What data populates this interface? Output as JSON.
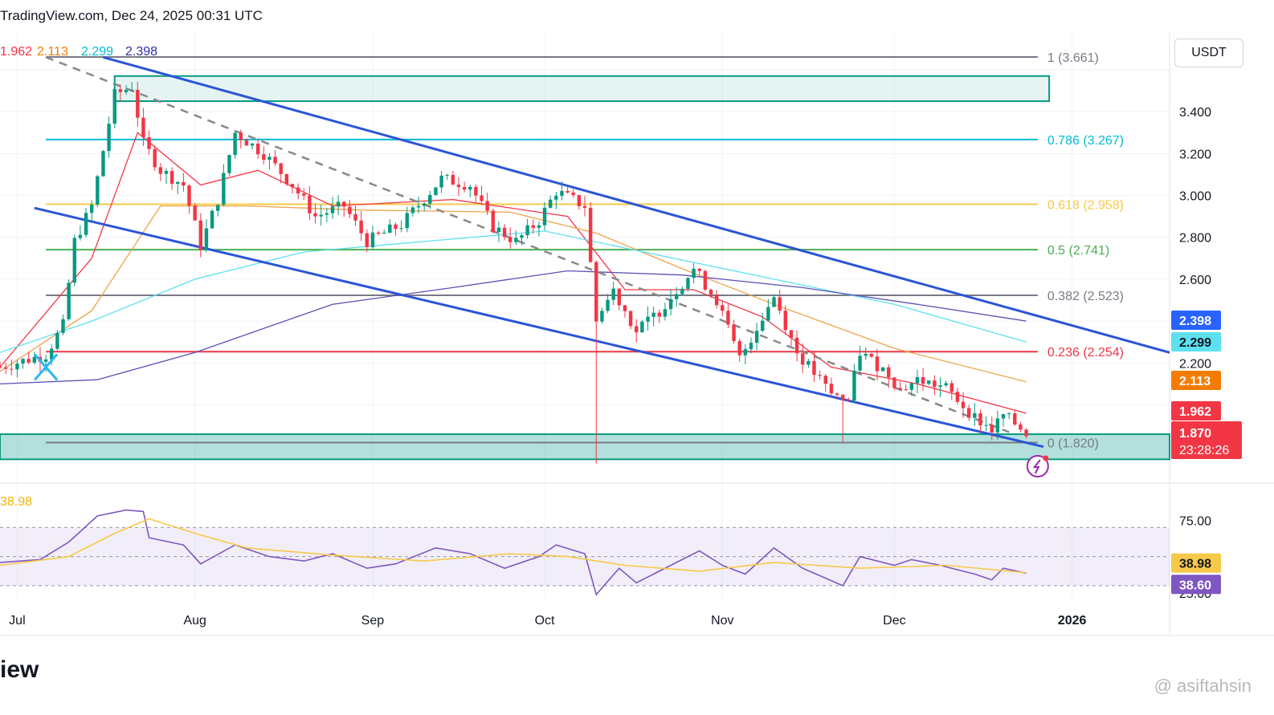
{
  "header": {
    "text": "TradingView.com, Dec 24, 2025 00:31 UTC"
  },
  "currency_button": "USDT",
  "footer": {
    "logo_text": "iew",
    "watermark": "@ asiftahsin"
  },
  "colors": {
    "up": "#089981",
    "down": "#f23645",
    "channel": "#2b55d6",
    "midline": "#888888",
    "ma_red": "#f23645",
    "ma_orange": "#f0a24a",
    "ma_cyan": "#5ee0f0",
    "ma_purple": "#5b4fb5",
    "rsi": "#7e57c2",
    "rsi_ma": "#f7c948",
    "zone": "#26a69a"
  },
  "chart_data": {
    "type": "candlestick",
    "pair_currency": "USDT",
    "x_tick_labels": [
      {
        "label": "Jul",
        "date": "2025-07-01"
      },
      {
        "label": "Aug",
        "date": "2025-08-01"
      },
      {
        "label": "Sep",
        "date": "2025-09-01"
      },
      {
        "label": "Oct",
        "date": "2025-10-01"
      },
      {
        "label": "Nov",
        "date": "2025-11-01"
      },
      {
        "label": "Dec",
        "date": "2025-12-01"
      },
      {
        "label": "2026",
        "date": "2026-01-01"
      }
    ],
    "x_range": [
      "2025-06-28",
      "2026-01-18"
    ],
    "y_range": [
      1.72,
      3.66
    ],
    "y_tick_labels": [
      "3.400",
      "3.200",
      "3.000",
      "2.800",
      "2.600",
      "2.200"
    ],
    "ma_legend": [
      "1.962",
      "2.113",
      "2.299",
      "2.398"
    ],
    "candles_anchors": [
      {
        "date": "2025-06-28",
        "close": 2.18
      },
      {
        "date": "2025-07-06",
        "close": 2.24
      },
      {
        "date": "2025-07-09",
        "close": 2.38
      },
      {
        "date": "2025-07-11",
        "close": 2.78
      },
      {
        "date": "2025-07-14",
        "close": 2.95
      },
      {
        "date": "2025-07-18",
        "close": 3.48
      },
      {
        "date": "2025-07-21",
        "close": 3.52
      },
      {
        "date": "2025-07-23",
        "close": 3.25
      },
      {
        "date": "2025-07-26",
        "close": 3.12
      },
      {
        "date": "2025-07-30",
        "close": 3.05
      },
      {
        "date": "2025-08-02",
        "close": 2.76
      },
      {
        "date": "2025-08-05",
        "close": 2.98
      },
      {
        "date": "2025-08-08",
        "close": 3.3
      },
      {
        "date": "2025-08-13",
        "close": 3.2
      },
      {
        "date": "2025-08-18",
        "close": 3.05
      },
      {
        "date": "2025-08-22",
        "close": 2.9
      },
      {
        "date": "2025-08-27",
        "close": 2.95
      },
      {
        "date": "2025-08-31",
        "close": 2.78
      },
      {
        "date": "2025-09-06",
        "close": 2.86
      },
      {
        "date": "2025-09-13",
        "close": 3.08
      },
      {
        "date": "2025-09-18",
        "close": 3.05
      },
      {
        "date": "2025-09-22",
        "close": 2.85
      },
      {
        "date": "2025-09-26",
        "close": 2.78
      },
      {
        "date": "2025-09-30",
        "close": 2.88
      },
      {
        "date": "2025-10-03",
        "close": 3.02
      },
      {
        "date": "2025-10-08",
        "close": 2.95
      },
      {
        "date": "2025-10-10",
        "close": 2.4
      },
      {
        "date": "2025-10-13",
        "close": 2.55
      },
      {
        "date": "2025-10-17",
        "close": 2.35
      },
      {
        "date": "2025-10-21",
        "close": 2.45
      },
      {
        "date": "2025-10-27",
        "close": 2.65
      },
      {
        "date": "2025-10-31",
        "close": 2.5
      },
      {
        "date": "2025-11-04",
        "close": 2.22
      },
      {
        "date": "2025-11-10",
        "close": 2.52
      },
      {
        "date": "2025-11-14",
        "close": 2.25
      },
      {
        "date": "2025-11-20",
        "close": 2.05
      },
      {
        "date": "2025-11-23",
        "close": 2.02
      },
      {
        "date": "2025-11-25",
        "close": 2.25
      },
      {
        "date": "2025-11-30",
        "close": 2.15
      },
      {
        "date": "2025-12-02",
        "close": 2.07
      },
      {
        "date": "2025-12-05",
        "close": 2.12
      },
      {
        "date": "2025-12-10",
        "close": 2.08
      },
      {
        "date": "2025-12-15",
        "close": 1.94
      },
      {
        "date": "2025-12-18",
        "close": 1.88
      },
      {
        "date": "2025-12-20",
        "close": 1.95
      },
      {
        "date": "2025-12-24",
        "close": 1.87
      }
    ],
    "notable_wicks": [
      {
        "date": "2025-10-10",
        "low": 1.72
      },
      {
        "date": "2025-11-22",
        "low": 1.82
      }
    ],
    "moving_averages": [
      {
        "value_label": "1.962",
        "color": "#f23645",
        "points": [
          [
            "2025-06-28",
            2.18
          ],
          [
            "2025-07-14",
            2.7
          ],
          [
            "2025-07-22",
            3.3
          ],
          [
            "2025-08-02",
            3.05
          ],
          [
            "2025-08-12",
            3.12
          ],
          [
            "2025-08-25",
            2.95
          ],
          [
            "2025-09-15",
            2.98
          ],
          [
            "2025-10-05",
            2.9
          ],
          [
            "2025-10-15",
            2.55
          ],
          [
            "2025-10-27",
            2.55
          ],
          [
            "2025-11-08",
            2.42
          ],
          [
            "2025-11-20",
            2.18
          ],
          [
            "2025-12-05",
            2.1
          ],
          [
            "2025-12-24",
            1.96
          ]
        ]
      },
      {
        "value_label": "2.113",
        "color": "#f0a24a",
        "points": [
          [
            "2025-06-28",
            2.16
          ],
          [
            "2025-07-14",
            2.45
          ],
          [
            "2025-07-26",
            2.95
          ],
          [
            "2025-08-10",
            2.95
          ],
          [
            "2025-08-30",
            2.93
          ],
          [
            "2025-09-25",
            2.92
          ],
          [
            "2025-10-10",
            2.82
          ],
          [
            "2025-10-25",
            2.65
          ],
          [
            "2025-11-10",
            2.48
          ],
          [
            "2025-12-01",
            2.27
          ],
          [
            "2025-12-24",
            2.11
          ]
        ]
      },
      {
        "value_label": "2.299",
        "color": "#5ee0f0",
        "points": [
          [
            "2025-06-28",
            2.25
          ],
          [
            "2025-07-14",
            2.4
          ],
          [
            "2025-08-01",
            2.6
          ],
          [
            "2025-08-20",
            2.73
          ],
          [
            "2025-09-10",
            2.78
          ],
          [
            "2025-10-01",
            2.83
          ],
          [
            "2025-10-20",
            2.72
          ],
          [
            "2025-11-10",
            2.6
          ],
          [
            "2025-12-01",
            2.48
          ],
          [
            "2025-12-24",
            2.3
          ]
        ]
      },
      {
        "value_label": "2.398",
        "color": "#5b4fb5",
        "points": [
          [
            "2025-06-28",
            2.1
          ],
          [
            "2025-07-15",
            2.12
          ],
          [
            "2025-08-01",
            2.25
          ],
          [
            "2025-08-25",
            2.48
          ],
          [
            "2025-09-15",
            2.56
          ],
          [
            "2025-10-05",
            2.64
          ],
          [
            "2025-10-25",
            2.62
          ],
          [
            "2025-11-15",
            2.56
          ],
          [
            "2025-12-05",
            2.48
          ],
          [
            "2025-12-24",
            2.4
          ]
        ]
      }
    ],
    "fibonacci_levels": [
      {
        "label": "1 (3.661)",
        "value": 3.661,
        "color": "#787b86"
      },
      {
        "label": "0.786 (3.267)",
        "value": 3.267,
        "color": "#00bcd4"
      },
      {
        "label": "0.618 (2.958)",
        "value": 2.958,
        "color": "#f7c948"
      },
      {
        "label": "0.5 (2.741)",
        "value": 2.741,
        "color": "#4caf50"
      },
      {
        "label": "0.382 (2.523)",
        "value": 2.523,
        "color": "#787b86"
      },
      {
        "label": "0.236 (2.254)",
        "value": 2.254,
        "color": "#f23645"
      },
      {
        "label": "0 (1.820)",
        "value": 1.82,
        "color": "#787b86"
      }
    ],
    "channel": {
      "upper": [
        [
          "2025-07-16",
          3.66
        ],
        [
          "2026-01-18",
          2.25
        ]
      ],
      "lower": [
        [
          "2025-07-04",
          2.94
        ],
        [
          "2025-12-27",
          1.8
        ]
      ],
      "mid": [
        [
          "2025-07-06",
          3.66
        ],
        [
          "2025-12-21",
          1.87
        ]
      ]
    },
    "zones": [
      {
        "name": "supply",
        "from": "2025-07-18",
        "to": "2025-12-28",
        "top": 3.57,
        "bottom": 3.45
      },
      {
        "name": "demand",
        "from": "2025-06-28",
        "to": "2026-01-18",
        "top": 1.86,
        "bottom": 1.74
      }
    ],
    "price_labels": [
      {
        "text": "2.398",
        "value": 2.398,
        "bg": "#2962ff",
        "fg": "#ffffff"
      },
      {
        "text": "2.299",
        "value": 2.299,
        "bg": "#5ee0f0",
        "fg": "#131722"
      },
      {
        "text": "2.113",
        "value": 2.113,
        "bg": "#f57c00",
        "fg": "#ffffff"
      },
      {
        "text": "1.962",
        "value": 1.962,
        "bg": "#f23645",
        "fg": "#ffffff"
      },
      {
        "text": "1.870",
        "countdown": "23:28:26",
        "value": 1.87,
        "bg": "#f23645",
        "fg": "#ffffff"
      }
    ],
    "rsi": {
      "y_range": [
        20,
        100
      ],
      "band": [
        30,
        70
      ],
      "y_tick_labels": [
        "75.00",
        "25.00"
      ],
      "legend_value": "38.98",
      "value_labels": [
        {
          "text": "38.98",
          "value": 38.98,
          "bg": "#f7c948",
          "fg": "#131722"
        },
        {
          "text": "38.60",
          "value": 38.6,
          "bg": "#7e57c2",
          "fg": "#ffffff"
        }
      ],
      "rsi_points": [
        [
          "2025-06-28",
          46
        ],
        [
          "2025-07-05",
          48
        ],
        [
          "2025-07-10",
          60
        ],
        [
          "2025-07-15",
          78
        ],
        [
          "2025-07-20",
          82
        ],
        [
          "2025-07-23",
          81
        ],
        [
          "2025-07-24",
          63
        ],
        [
          "2025-07-30",
          58
        ],
        [
          "2025-08-02",
          45
        ],
        [
          "2025-08-08",
          58
        ],
        [
          "2025-08-14",
          50
        ],
        [
          "2025-08-20",
          47
        ],
        [
          "2025-08-25",
          52
        ],
        [
          "2025-08-31",
          42
        ],
        [
          "2025-09-05",
          45
        ],
        [
          "2025-09-12",
          56
        ],
        [
          "2025-09-18",
          52
        ],
        [
          "2025-09-24",
          42
        ],
        [
          "2025-09-30",
          50
        ],
        [
          "2025-10-03",
          58
        ],
        [
          "2025-10-08",
          52
        ],
        [
          "2025-10-10",
          24
        ],
        [
          "2025-10-14",
          42
        ],
        [
          "2025-10-17",
          32
        ],
        [
          "2025-10-22",
          42
        ],
        [
          "2025-10-28",
          54
        ],
        [
          "2025-11-01",
          44
        ],
        [
          "2025-11-05",
          38
        ],
        [
          "2025-11-10",
          56
        ],
        [
          "2025-11-15",
          42
        ],
        [
          "2025-11-22",
          30
        ],
        [
          "2025-11-25",
          50
        ],
        [
          "2025-12-01",
          44
        ],
        [
          "2025-12-04",
          48
        ],
        [
          "2025-12-09",
          44
        ],
        [
          "2025-12-15",
          38
        ],
        [
          "2025-12-18",
          34
        ],
        [
          "2025-12-20",
          42
        ],
        [
          "2025-12-24",
          38.6
        ]
      ],
      "ma_points": [
        [
          "2025-06-28",
          44
        ],
        [
          "2025-07-10",
          50
        ],
        [
          "2025-07-18",
          66
        ],
        [
          "2025-07-24",
          76
        ],
        [
          "2025-08-01",
          66
        ],
        [
          "2025-08-10",
          56
        ],
        [
          "2025-08-25",
          51
        ],
        [
          "2025-09-10",
          47
        ],
        [
          "2025-09-25",
          52
        ],
        [
          "2025-10-05",
          50
        ],
        [
          "2025-10-15",
          44
        ],
        [
          "2025-10-28",
          40
        ],
        [
          "2025-11-10",
          46
        ],
        [
          "2025-11-25",
          42
        ],
        [
          "2025-12-10",
          44
        ],
        [
          "2025-12-24",
          38.98
        ]
      ]
    }
  }
}
